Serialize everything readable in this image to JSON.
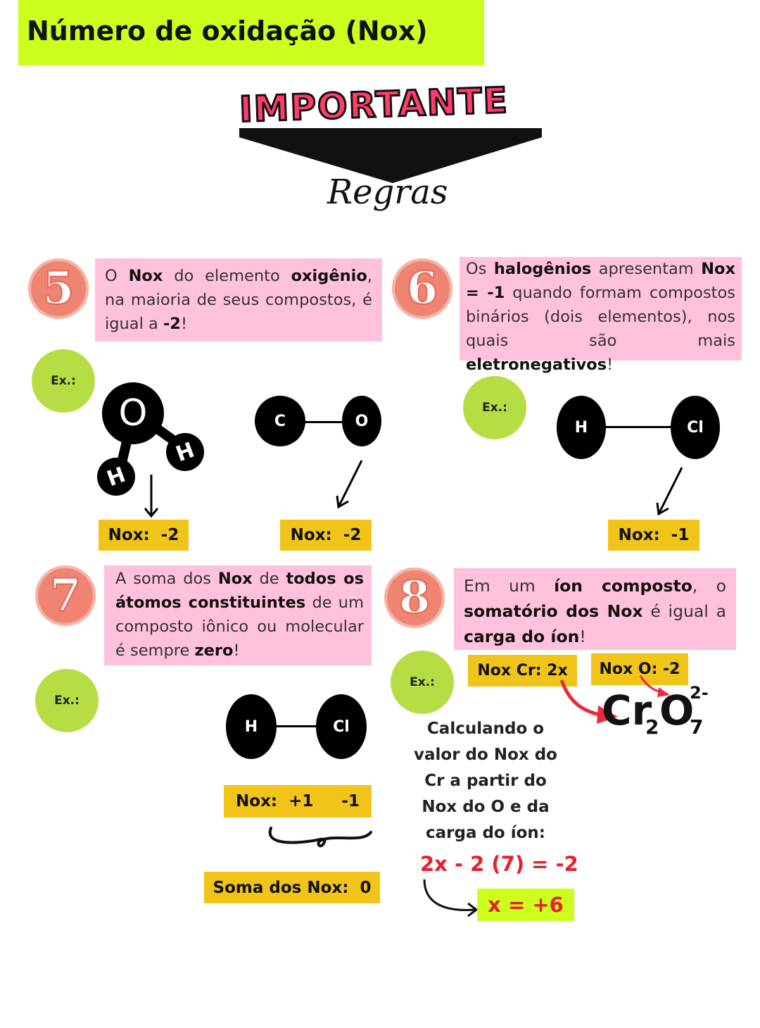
{
  "header": {
    "title": "Número de oxidação (Nox)"
  },
  "banner": {
    "badge": "IMPORTANTE",
    "subtitle": "Regras"
  },
  "rules": [
    {
      "number": "5",
      "parts": [
        [
          "O ",
          false
        ],
        [
          "Nox",
          true
        ],
        [
          " do elemento ",
          false
        ],
        [
          "oxigênio",
          true
        ],
        [
          ", na maioria de seus compostos, é igual a ",
          false
        ],
        [
          "-2",
          true
        ],
        [
          "!",
          false
        ]
      ]
    },
    {
      "number": "6",
      "parts": [
        [
          "Os ",
          false
        ],
        [
          "halogênios",
          true
        ],
        [
          " apresentam ",
          false
        ],
        [
          "Nox = -1",
          true
        ],
        [
          " quando formam compostos binários (dois elementos), nos quais são mais ",
          false
        ],
        [
          "eletronegativos",
          true
        ],
        [
          "!",
          false
        ]
      ]
    },
    {
      "number": "7",
      "parts": [
        [
          "A soma dos ",
          false
        ],
        [
          "Nox",
          true
        ],
        [
          " de ",
          false
        ],
        [
          "todos os átomos constituintes",
          true
        ],
        [
          " de um composto iônico ou molecular é sempre ",
          false
        ],
        [
          "zero",
          true
        ],
        [
          "!",
          false
        ]
      ]
    },
    {
      "number": "8",
      "parts": [
        [
          "Em um ",
          false
        ],
        [
          "íon composto",
          true
        ],
        [
          ", o ",
          false
        ],
        [
          "somatório dos Nox",
          true
        ],
        [
          " é igual a ",
          false
        ],
        [
          "carga do íon",
          true
        ],
        [
          "!",
          false
        ]
      ]
    }
  ],
  "examples": {
    "label": "Ex.:",
    "water": {
      "o": "O",
      "h1": "H",
      "h2": "H",
      "nox": "Nox:  -2"
    },
    "co": {
      "c": "C",
      "o": "O",
      "nox": "Nox:  -2"
    },
    "hcl6": {
      "h": "H",
      "cl": "Cl",
      "nox": "Nox:  -1"
    },
    "hcl7": {
      "h": "H",
      "cl": "Cl",
      "nox": "Nox:  +1     -1",
      "sum": "Soma dos Nox:  0"
    },
    "ion": {
      "nox_cr": "Nox Cr: 2x",
      "nox_o": "Nox O: -2",
      "el1": "Cr",
      "sub1": "2",
      "el2": "O",
      "sub2": "7",
      "charge": "2-",
      "calc_lines": [
        "Calculando o",
        "valor do Nox do",
        "Cr a partir do",
        "Nox do O e da",
        "carga do íon:"
      ],
      "equation": "2x - 2 (7) = -2",
      "result": "x = +6"
    }
  },
  "colors": {
    "title_bg": "#ccff1e",
    "pink": "#ffc1dc",
    "yellow": "#f0c418",
    "green": "#b7dd44",
    "salmon": "#ef8472",
    "red": "#ea1d2d",
    "badge": "#ff3d6b"
  }
}
